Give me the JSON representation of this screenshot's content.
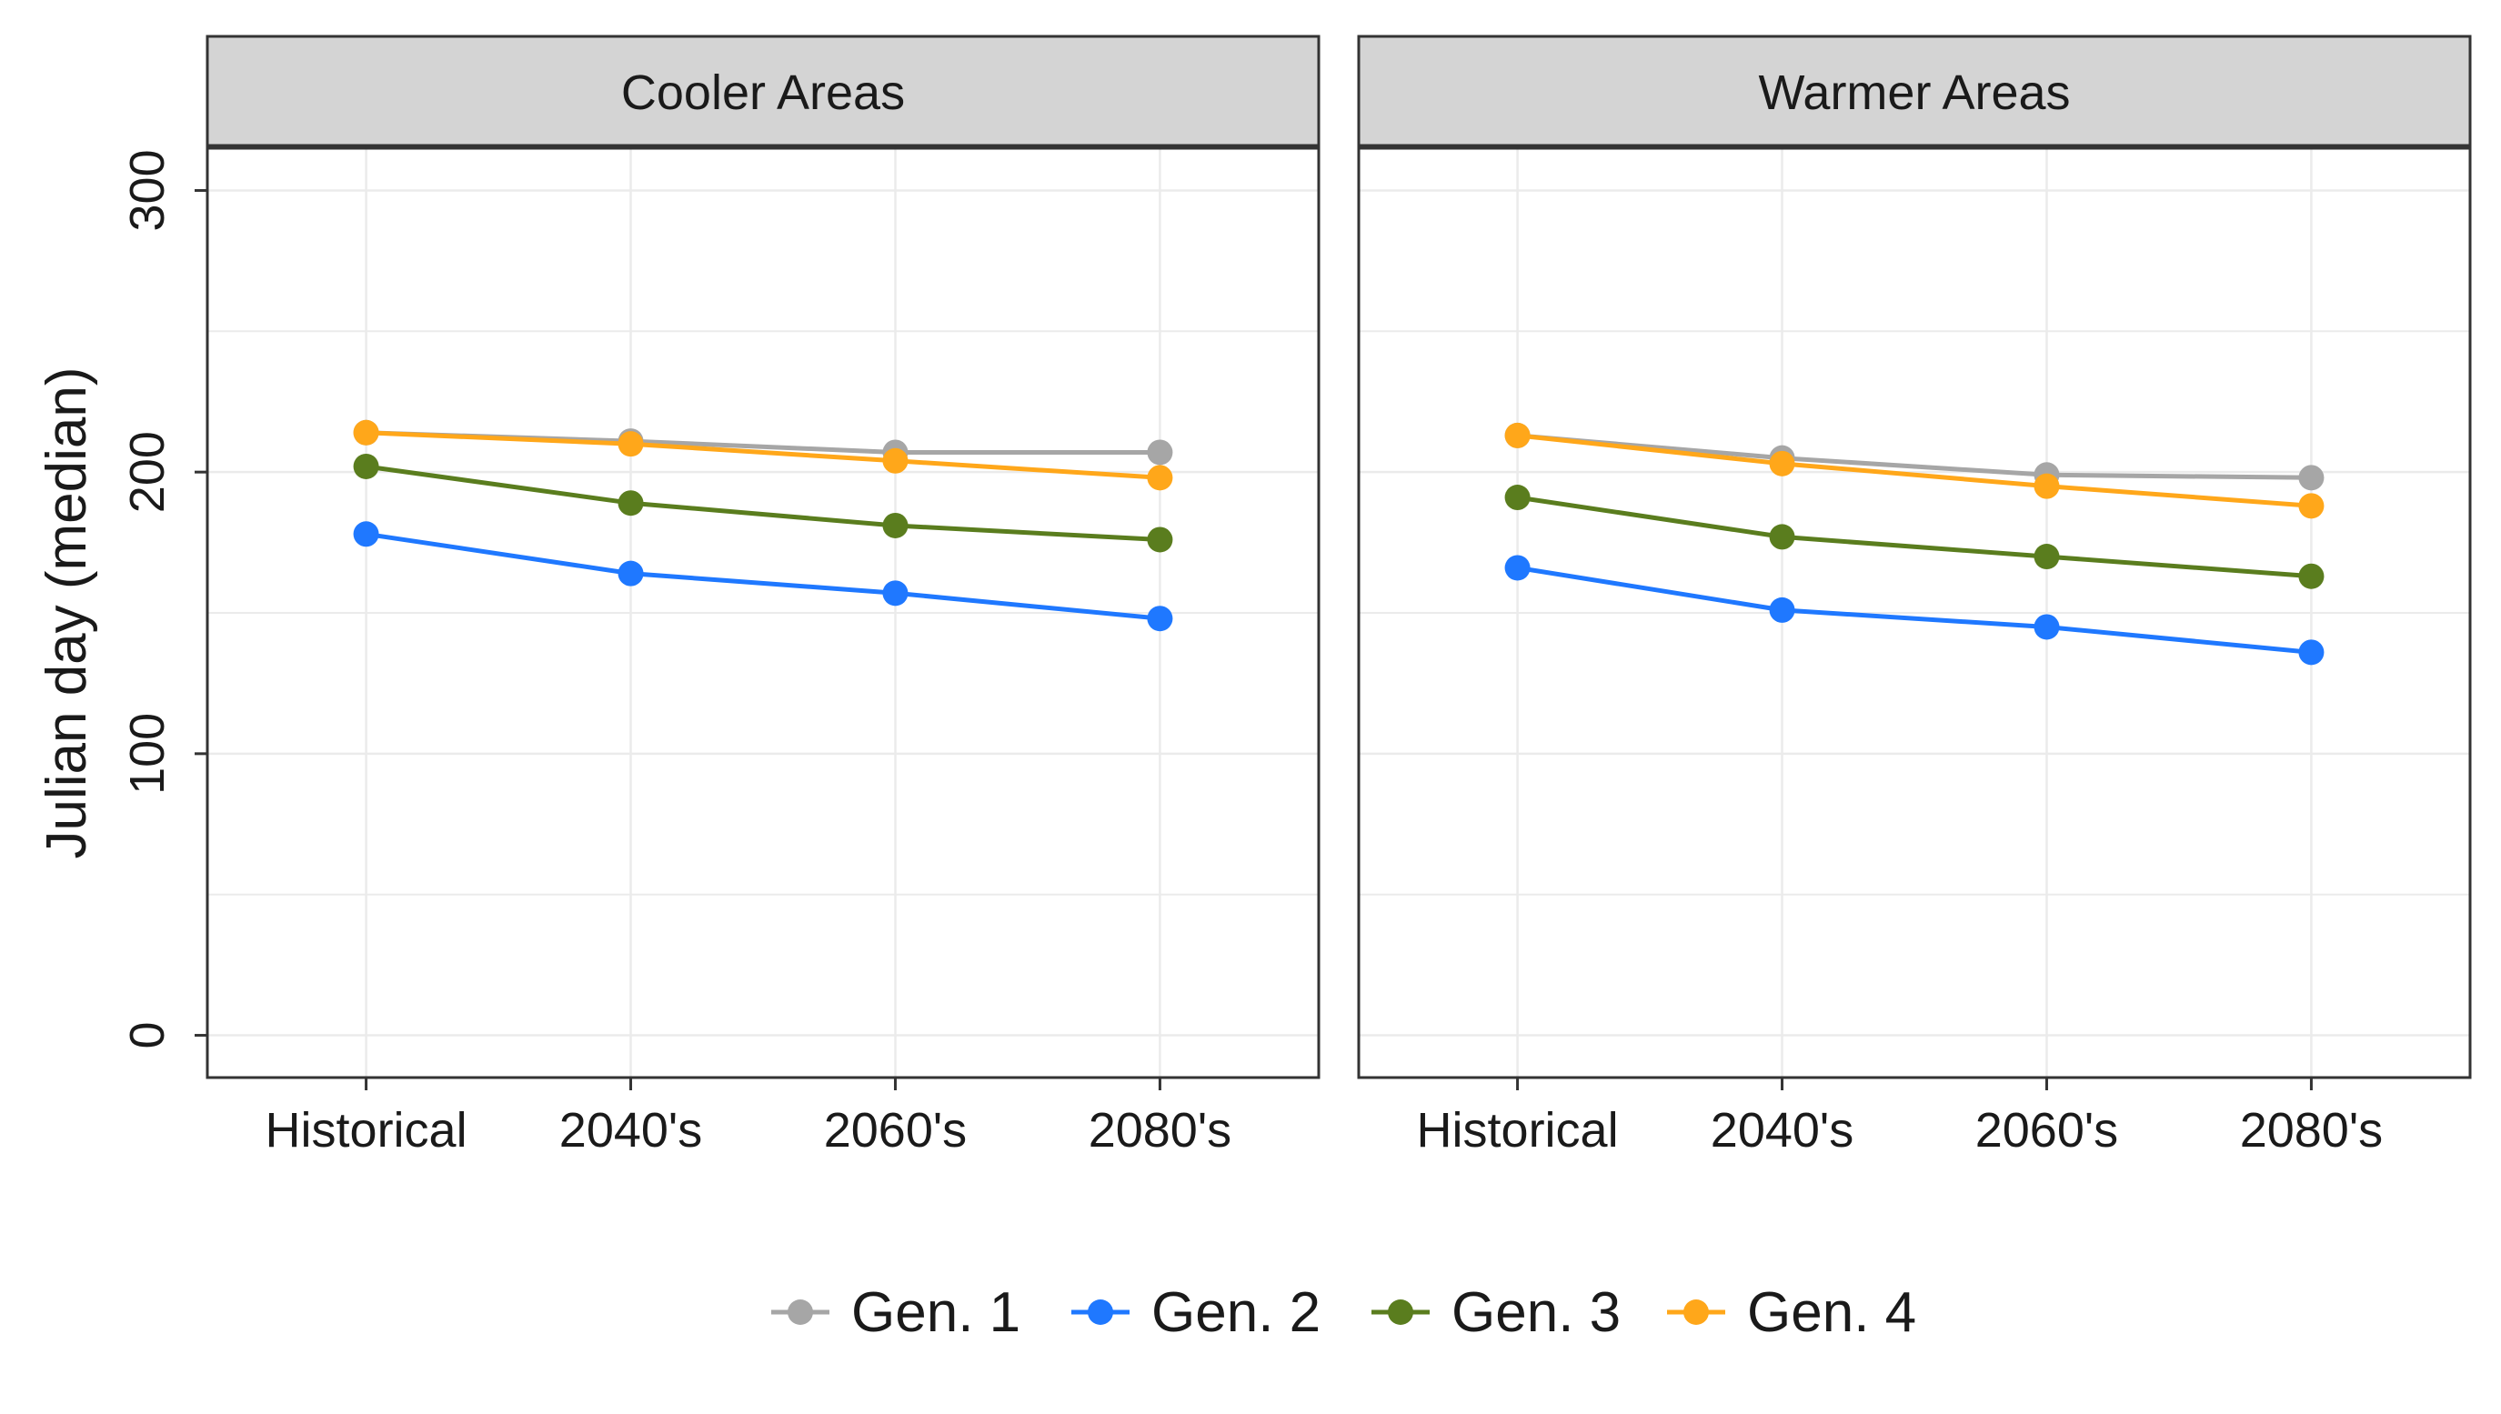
{
  "chart_data": {
    "type": "line",
    "ylabel": "Julian day (median)",
    "xlabel": "",
    "categories": [
      "Historical",
      "2040's",
      "2060's",
      "2080's"
    ],
    "ylim": [
      -15,
      315
    ],
    "yticks": [
      0,
      100,
      200,
      300
    ],
    "grid": true,
    "legend_position": "bottom",
    "colors": {
      "Gen. 1": "#a6a6a6",
      "Gen. 2": "#1f78ff",
      "Gen. 3": "#5a7d1e",
      "Gen. 4": "#ffa71a"
    },
    "panels": [
      {
        "title": "Cooler Areas",
        "series": [
          {
            "name": "Gen. 1",
            "values": [
              214,
              211,
              207,
              207
            ]
          },
          {
            "name": "Gen. 2",
            "values": [
              178,
              164,
              157,
              148
            ]
          },
          {
            "name": "Gen. 3",
            "values": [
              202,
              189,
              181,
              176
            ]
          },
          {
            "name": "Gen. 4",
            "values": [
              214,
              210,
              204,
              198
            ]
          }
        ]
      },
      {
        "title": "Warmer Areas",
        "series": [
          {
            "name": "Gen. 1",
            "values": [
              213,
              205,
              199,
              198
            ]
          },
          {
            "name": "Gen. 2",
            "values": [
              166,
              151,
              145,
              136
            ]
          },
          {
            "name": "Gen. 3",
            "values": [
              191,
              177,
              170,
              163
            ]
          },
          {
            "name": "Gen. 4",
            "values": [
              213,
              203,
              195,
              188
            ]
          }
        ]
      }
    ]
  }
}
